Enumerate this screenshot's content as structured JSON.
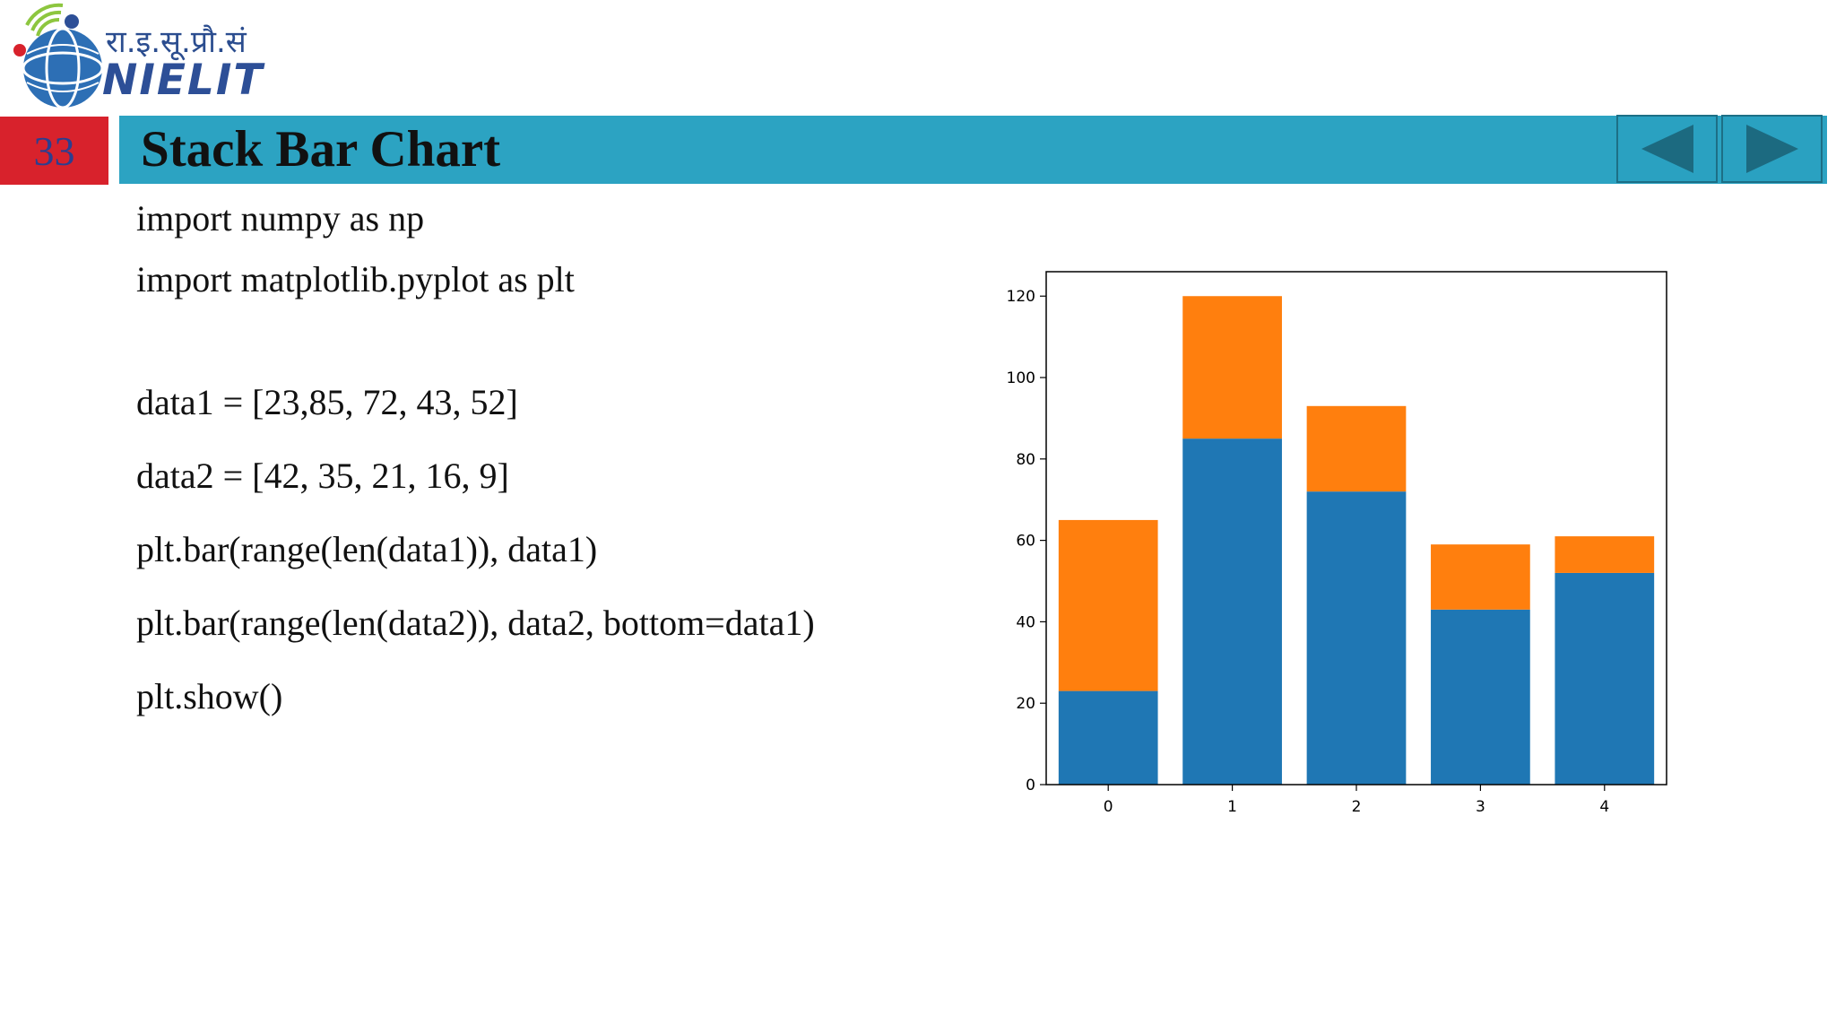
{
  "brand": {
    "devanagari": "रा.इ.सू.प्रौ.सं",
    "wordmark": "NIELIT",
    "colors": {
      "logo_blue": "#2d4f97",
      "logo_red": "#d8222c",
      "logo_green": "#8dc63f"
    }
  },
  "slide": {
    "number": "33",
    "title": "Stack Bar Chart"
  },
  "navigation": {
    "prev_icon": "triangle-left-icon",
    "next_icon": "triangle-right-icon"
  },
  "code": {
    "lines": [
      "import numpy as np",
      "import matplotlib.pyplot as plt",
      "data1 = [23,85, 72, 43, 52]",
      "data2 = [42, 35, 21, 16, 9]",
      "plt.bar(range(len(data1)), data1)",
      "plt.bar(range(len(data2)), data2, bottom=data1)",
      "plt.show()"
    ]
  },
  "colors": {
    "title_bar": "#2ca3c2",
    "slide_number_bg": "#d8222c",
    "series_1": "#1f77b4",
    "series_2": "#ff7f0e"
  },
  "chart_data": {
    "type": "bar",
    "stacked": true,
    "title": "",
    "xlabel": "",
    "ylabel": "",
    "categories": [
      "0",
      "1",
      "2",
      "3",
      "4"
    ],
    "series": [
      {
        "values": [
          23,
          85,
          72,
          43,
          52
        ],
        "color": "#1f77b4"
      },
      {
        "values": [
          42,
          35,
          21,
          16,
          9
        ],
        "color": "#ff7f0e"
      }
    ],
    "ylim": [
      0,
      126
    ],
    "yticks": [
      0,
      20,
      40,
      60,
      80,
      100,
      120
    ],
    "grid": false,
    "legend": "none"
  }
}
